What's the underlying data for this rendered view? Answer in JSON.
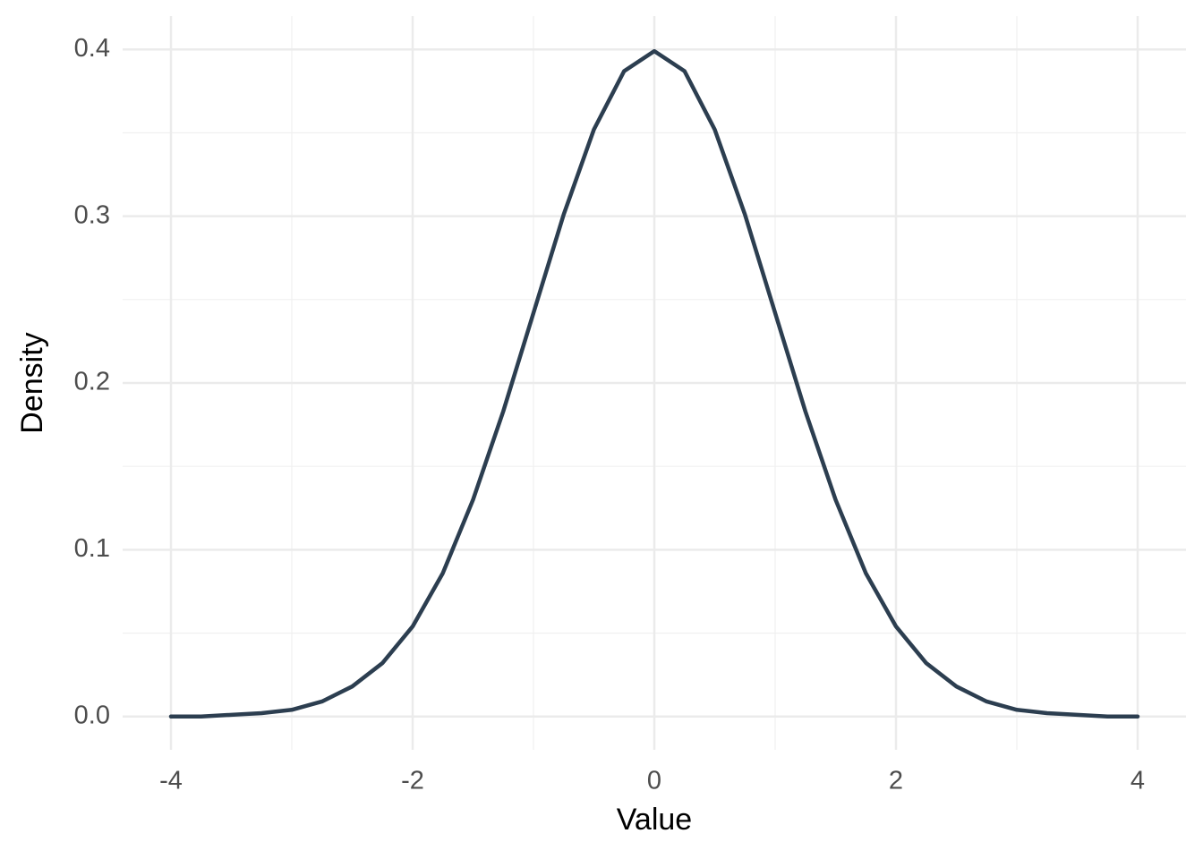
{
  "chart_data": {
    "type": "line",
    "x_label": "Value",
    "y_label": "Density",
    "x": [
      -4,
      -3.75,
      -3.5,
      -3.25,
      -3,
      -2.75,
      -2.5,
      -2.25,
      -2,
      -1.75,
      -1.5,
      -1.25,
      -1,
      -0.75,
      -0.5,
      -0.25,
      0,
      0.25,
      0.5,
      0.75,
      1,
      1.25,
      1.5,
      1.75,
      2,
      2.25,
      2.5,
      2.75,
      3,
      3.25,
      3.5,
      3.75,
      4
    ],
    "values": [
      0.0,
      0.0,
      0.001,
      0.002,
      0.004,
      0.009,
      0.018,
      0.032,
      0.054,
      0.086,
      0.13,
      0.183,
      0.242,
      0.301,
      0.352,
      0.387,
      0.399,
      0.387,
      0.352,
      0.301,
      0.242,
      0.183,
      0.13,
      0.086,
      0.054,
      0.032,
      0.018,
      0.009,
      0.004,
      0.002,
      0.001,
      0.0,
      0.0
    ],
    "color": "#2c3e50",
    "xlim": [
      -4.4,
      4.4
    ],
    "ylim": [
      -0.02,
      0.42
    ],
    "xticks": [
      -4,
      -2,
      0,
      2,
      4
    ],
    "yticks": [
      {
        "value": 0,
        "label": "0.0"
      },
      0.1,
      0.2,
      0.3,
      0.4
    ],
    "x_minor_ticks": [
      -3,
      -1,
      1,
      3
    ],
    "y_minor_ticks": [
      0.05,
      0.15,
      0.25,
      0.35
    ],
    "grid": true
  }
}
